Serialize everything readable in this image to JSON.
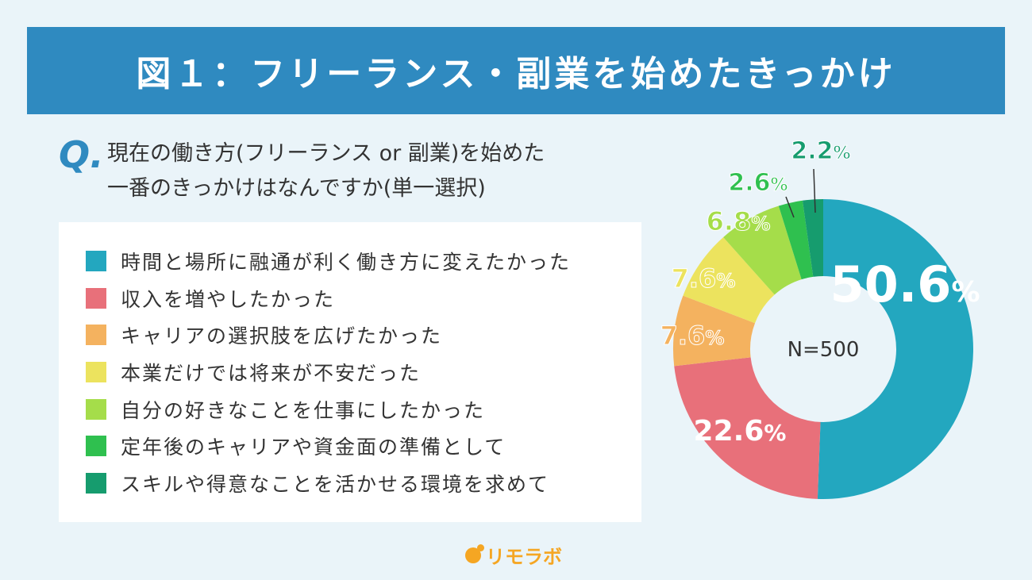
{
  "header": {
    "title": "図１：フリーランス・副業を始めたきっかけ"
  },
  "question": {
    "mark": "Q.",
    "line1": "現在の働き方(フリーランス or 副業)を始めた",
    "line2": "一番のきっかけはなんですか(単一選択)"
  },
  "logo": {
    "text": "リモラボ"
  },
  "chart_data": {
    "type": "pie",
    "center_label": "N=500",
    "unit": "%",
    "categories": [
      "時間と場所に融通が利く働き方に変えたかった",
      "収入を増やしたかった",
      "キャリアの選択肢を広げたかった",
      "本業だけでは将来が不安だった",
      "自分の好きなことを仕事にしたかった",
      "定年後のキャリアや資金面の準備として",
      "スキルや得意なことを活かせる環境を求めて"
    ],
    "values": [
      50.6,
      22.6,
      7.6,
      7.6,
      6.8,
      2.6,
      2.2
    ],
    "value_labels": [
      "50.6",
      "22.6",
      "7.6",
      "7.6",
      "6.8",
      "2.6",
      "2.2"
    ],
    "colors": [
      "#23a7bf",
      "#e8707a",
      "#f4b25f",
      "#ece35e",
      "#a5dd4a",
      "#2fc04f",
      "#169c6e"
    ],
    "label_colors": [
      "#ffffff",
      "#ffffff",
      "#f4b25f",
      "#ece35e",
      "#a5dd4a",
      "#2fc04f",
      "#169c6e"
    ],
    "legend_placement": "left"
  }
}
